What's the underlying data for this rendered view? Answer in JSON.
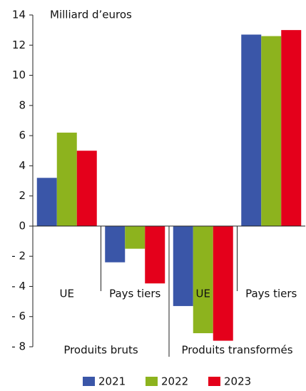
{
  "chart_data": {
    "type": "bar",
    "annotation": "Milliard d’euros",
    "categories": [
      "UE",
      "Pays tiers",
      "UE",
      "Pays tiers"
    ],
    "groups": [
      {
        "label": "Produits bruts",
        "span": [
          0,
          1
        ]
      },
      {
        "label": "Produits transformés",
        "span": [
          2,
          3
        ]
      }
    ],
    "series": [
      {
        "name": "2021",
        "color": "#3a56a8",
        "values": [
          3.2,
          -2.4,
          -5.3,
          12.7
        ]
      },
      {
        "name": "2022",
        "color": "#8db31e",
        "values": [
          6.2,
          -1.5,
          -7.1,
          12.6
        ]
      },
      {
        "name": "2023",
        "color": "#e4001b",
        "values": [
          5.0,
          -3.8,
          -7.6,
          13.0
        ]
      }
    ],
    "ylim": [
      -8,
      14
    ],
    "yticks": [
      {
        "value": -8,
        "label": "- 8"
      },
      {
        "value": -6,
        "label": "- 6"
      },
      {
        "value": -4,
        "label": "- 4"
      },
      {
        "value": -2,
        "label": "- 2"
      },
      0,
      2,
      4,
      6,
      8,
      10,
      12,
      14
    ],
    "grid": false,
    "legend": "bottom"
  }
}
